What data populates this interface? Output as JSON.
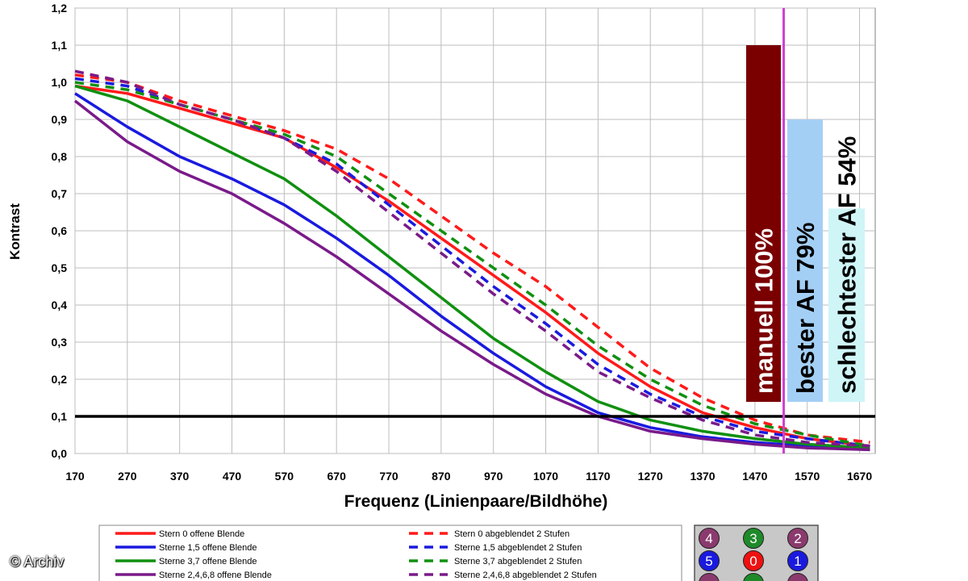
{
  "chart_data": {
    "type": "line",
    "title": "",
    "xlabel": "Frequenz (Linienpaare/Bildhöhe)",
    "ylabel": "Kontrast",
    "xlim": [
      170,
      1700
    ],
    "ylim": [
      0,
      1.2
    ],
    "x_ticks": [
      "170",
      "270",
      "370",
      "470",
      "570",
      "670",
      "770",
      "870",
      "970",
      "1070",
      "1170",
      "1270",
      "1370",
      "1470",
      "1570",
      "1670"
    ],
    "y_ticks": [
      "0,0",
      "0,1",
      "0,2",
      "0,3",
      "0,4",
      "0,5",
      "0,6",
      "0,7",
      "0,8",
      "0,9",
      "1,0",
      "1,1",
      "1,2"
    ],
    "grid": true,
    "reference_line": {
      "y": 0.1,
      "color": "#000000"
    },
    "marker_line": {
      "x": 1525,
      "color": "#d040d0"
    },
    "series": [
      {
        "name": "Stern 0 offene Blende",
        "color": "#ff1a1a",
        "dashed": false,
        "x": [
          170,
          270,
          370,
          470,
          570,
          670,
          770,
          870,
          970,
          1070,
          1170,
          1270,
          1370,
          1470,
          1570,
          1690
        ],
        "y": [
          0.99,
          0.97,
          0.93,
          0.89,
          0.85,
          0.77,
          0.68,
          0.58,
          0.48,
          0.38,
          0.27,
          0.18,
          0.11,
          0.07,
          0.04,
          0.02
        ]
      },
      {
        "name": "Sterne 1,5 offene Blende",
        "color": "#1a1adf",
        "dashed": false,
        "x": [
          170,
          270,
          370,
          470,
          570,
          670,
          770,
          870,
          970,
          1070,
          1170,
          1270,
          1370,
          1470,
          1570,
          1690
        ],
        "y": [
          0.97,
          0.88,
          0.8,
          0.74,
          0.67,
          0.58,
          0.48,
          0.37,
          0.27,
          0.18,
          0.11,
          0.07,
          0.045,
          0.03,
          0.02,
          0.01
        ]
      },
      {
        "name": "Sterne 3,7 offene Blende",
        "color": "#109010",
        "dashed": false,
        "x": [
          170,
          270,
          370,
          470,
          570,
          670,
          770,
          870,
          970,
          1070,
          1170,
          1270,
          1370,
          1470,
          1570,
          1690
        ],
        "y": [
          0.99,
          0.95,
          0.88,
          0.81,
          0.74,
          0.64,
          0.53,
          0.42,
          0.31,
          0.22,
          0.14,
          0.09,
          0.06,
          0.04,
          0.025,
          0.015
        ]
      },
      {
        "name": "Sterne 2,4,6,8 offene Blende",
        "color": "#7a1a8a",
        "dashed": false,
        "x": [
          170,
          270,
          370,
          470,
          570,
          670,
          770,
          870,
          970,
          1070,
          1170,
          1270,
          1370,
          1470,
          1570,
          1690
        ],
        "y": [
          0.95,
          0.84,
          0.76,
          0.7,
          0.62,
          0.53,
          0.43,
          0.33,
          0.24,
          0.16,
          0.1,
          0.06,
          0.04,
          0.025,
          0.015,
          0.01
        ]
      },
      {
        "name": "Stern 0 abgeblendet 2 Stufen",
        "color": "#ff1a1a",
        "dashed": true,
        "x": [
          170,
          270,
          370,
          470,
          570,
          670,
          770,
          870,
          970,
          1070,
          1170,
          1270,
          1370,
          1470,
          1570,
          1690
        ],
        "y": [
          1.02,
          1.0,
          0.95,
          0.91,
          0.87,
          0.82,
          0.74,
          0.64,
          0.54,
          0.45,
          0.34,
          0.23,
          0.15,
          0.09,
          0.05,
          0.03
        ]
      },
      {
        "name": "Sterne 1,5 abgeblendet 2 Stufen",
        "color": "#1a1adf",
        "dashed": true,
        "x": [
          170,
          270,
          370,
          470,
          570,
          670,
          770,
          870,
          970,
          1070,
          1170,
          1270,
          1370,
          1470,
          1570,
          1690
        ],
        "y": [
          1.01,
          0.99,
          0.94,
          0.9,
          0.85,
          0.78,
          0.67,
          0.56,
          0.45,
          0.35,
          0.24,
          0.16,
          0.1,
          0.06,
          0.04,
          0.02
        ]
      },
      {
        "name": "Sterne 3,7 abgeblendet 2 Stufen",
        "color": "#109010",
        "dashed": true,
        "x": [
          170,
          270,
          370,
          470,
          570,
          670,
          770,
          870,
          970,
          1070,
          1170,
          1270,
          1370,
          1470,
          1570,
          1690
        ],
        "y": [
          1.0,
          0.98,
          0.94,
          0.9,
          0.86,
          0.8,
          0.7,
          0.6,
          0.5,
          0.4,
          0.29,
          0.2,
          0.13,
          0.08,
          0.05,
          0.02
        ]
      },
      {
        "name": "Sterne 2,4,6,8 abgeblendet 2 Stufen",
        "color": "#7a1a8a",
        "dashed": true,
        "x": [
          170,
          270,
          370,
          470,
          570,
          670,
          770,
          870,
          970,
          1070,
          1170,
          1270,
          1370,
          1470,
          1570,
          1690
        ],
        "y": [
          1.03,
          1.0,
          0.94,
          0.9,
          0.85,
          0.76,
          0.65,
          0.54,
          0.43,
          0.33,
          0.22,
          0.15,
          0.09,
          0.05,
          0.03,
          0.02
        ]
      }
    ],
    "bars": [
      {
        "label": "manuell 100%",
        "value": 1.1,
        "color": "#7a0000",
        "text_color": "#ffffff"
      },
      {
        "label": "bester AF 79%",
        "value": 0.9,
        "color": "#a4cff5",
        "text_color": "#000000"
      },
      {
        "label": "schlechtester AF 54%",
        "value": 0.66,
        "color": "#cff5f7",
        "text_color": "#000000"
      }
    ],
    "legend": {
      "placement": "bottom",
      "left": [
        "Stern 0 offene Blende",
        "Sterne 1,5 offene Blende",
        "Sterne 3,7 offene Blende",
        "Sterne 2,4,6,8 offene Blende"
      ],
      "right": [
        "Stern 0 abgeblendet 2 Stufen",
        "Sterne 1,5 abgeblendet 2 Stufen",
        "Sterne 3,7 abgeblendet 2 Stufen",
        "Sterne 2,4,6,8 abgeblendet 2 Stufen"
      ]
    },
    "star_grid": [
      {
        "label": "4",
        "color": "#8b3a6e"
      },
      {
        "label": "3",
        "color": "#1f8a2a"
      },
      {
        "label": "2",
        "color": "#8b3a6e"
      },
      {
        "label": "5",
        "color": "#1a1adf"
      },
      {
        "label": "0",
        "color": "#ee1111"
      },
      {
        "label": "1",
        "color": "#1a1adf"
      }
    ]
  },
  "credit": "Archiv",
  "credit_symbol": "©"
}
